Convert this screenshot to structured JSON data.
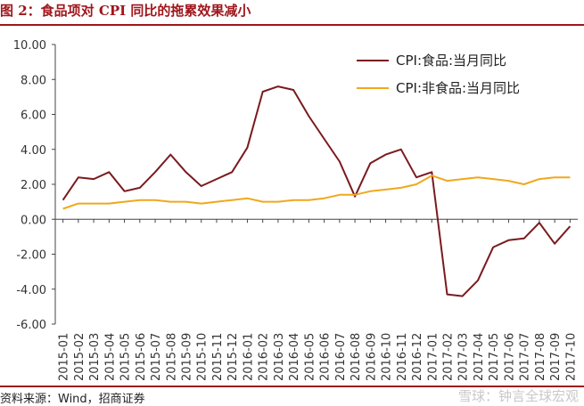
{
  "figure": {
    "title": "图 2：食品项对 CPI 同比的拖累效果减小",
    "source": "资料来源：Wind，招商证券",
    "watermark": "雪球：钟言全球宏观"
  },
  "colors": {
    "food": "#7a1a1e",
    "nonfood": "#f0a81c",
    "title": "#a0161c"
  },
  "chart_data": {
    "type": "line",
    "x": [
      "2015-01",
      "2015-02",
      "2015-03",
      "2015-04",
      "2015-05",
      "2015-06",
      "2015-07",
      "2015-08",
      "2015-09",
      "2015-10",
      "2015-11",
      "2015-12",
      "2016-01",
      "2016-02",
      "2016-03",
      "2016-04",
      "2016-05",
      "2016-06",
      "2016-07",
      "2016-08",
      "2016-09",
      "2016-10",
      "2016-11",
      "2016-12",
      "2017-01",
      "2017-02",
      "2017-03",
      "2017-04",
      "2017-05",
      "2017-06",
      "2017-07",
      "2017-08",
      "2017-09",
      "2017-10"
    ],
    "series": [
      {
        "name": "CPI:食品:当月同比",
        "values": [
          1.1,
          2.4,
          2.3,
          2.7,
          1.6,
          1.8,
          2.7,
          3.7,
          2.7,
          1.9,
          2.3,
          2.7,
          4.1,
          7.3,
          7.6,
          7.4,
          5.9,
          4.6,
          3.3,
          1.3,
          3.2,
          3.7,
          4.0,
          2.4,
          2.7,
          -4.3,
          -4.4,
          -3.5,
          -1.6,
          -1.2,
          -1.1,
          -0.2,
          -1.4,
          -0.4
        ]
      },
      {
        "name": "CPI:非食品:当月同比",
        "values": [
          0.6,
          0.9,
          0.9,
          0.9,
          1.0,
          1.1,
          1.1,
          1.0,
          1.0,
          0.9,
          1.0,
          1.1,
          1.2,
          1.0,
          1.0,
          1.1,
          1.1,
          1.2,
          1.4,
          1.4,
          1.6,
          1.7,
          1.8,
          2.0,
          2.5,
          2.2,
          2.3,
          2.4,
          2.3,
          2.2,
          2.0,
          2.3,
          2.4,
          2.4
        ]
      }
    ],
    "ylim": [
      -6,
      10
    ],
    "yticks": [
      "10.00",
      "8.00",
      "6.00",
      "4.00",
      "2.00",
      "0.00",
      "-2.00",
      "-4.00",
      "-6.00"
    ],
    "grid": false,
    "legend": "top-right",
    "xlabel": "",
    "ylabel": ""
  }
}
